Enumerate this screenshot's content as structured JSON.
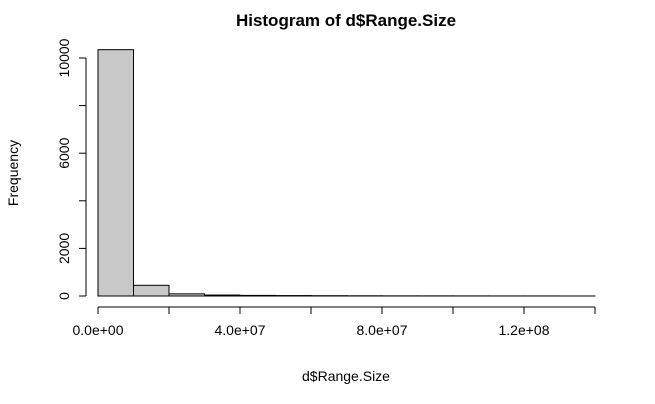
{
  "chart_data": {
    "type": "bar",
    "title": "Histogram of d$Range.Size",
    "xlabel": "d$Range.Size",
    "ylabel": "Frequency",
    "bin_width": 10000000,
    "bins": [
      {
        "start": 0,
        "end": 10000000,
        "count": 10350
      },
      {
        "start": 10000000,
        "end": 20000000,
        "count": 450
      },
      {
        "start": 20000000,
        "end": 30000000,
        "count": 90
      },
      {
        "start": 30000000,
        "end": 40000000,
        "count": 40
      },
      {
        "start": 40000000,
        "end": 50000000,
        "count": 25
      },
      {
        "start": 50000000,
        "end": 60000000,
        "count": 18
      },
      {
        "start": 60000000,
        "end": 70000000,
        "count": 12
      },
      {
        "start": 70000000,
        "end": 80000000,
        "count": 8
      },
      {
        "start": 80000000,
        "end": 90000000,
        "count": 6
      },
      {
        "start": 90000000,
        "end": 100000000,
        "count": 5
      },
      {
        "start": 100000000,
        "end": 110000000,
        "count": 4
      },
      {
        "start": 110000000,
        "end": 120000000,
        "count": 3
      },
      {
        "start": 120000000,
        "end": 130000000,
        "count": 2
      },
      {
        "start": 130000000,
        "end": 140000000,
        "count": 1
      }
    ],
    "xlim": [
      0,
      140000000
    ],
    "ylim": [
      0,
      10400
    ],
    "x_ticks": [
      {
        "value": 0,
        "label": "0.0e+00"
      },
      {
        "value": 20000000,
        "label": ""
      },
      {
        "value": 40000000,
        "label": "4.0e+07"
      },
      {
        "value": 60000000,
        "label": ""
      },
      {
        "value": 80000000,
        "label": "8.0e+07"
      },
      {
        "value": 100000000,
        "label": ""
      },
      {
        "value": 120000000,
        "label": "1.2e+08"
      },
      {
        "value": 140000000,
        "label": ""
      }
    ],
    "y_ticks": [
      {
        "value": 0,
        "label": "0"
      },
      {
        "value": 2000,
        "label": "2000"
      },
      {
        "value": 4000,
        "label": ""
      },
      {
        "value": 6000,
        "label": "6000"
      },
      {
        "value": 8000,
        "label": ""
      },
      {
        "value": 10000,
        "label": "10000"
      }
    ],
    "bar_color": "#c8c8c8",
    "grid": false
  }
}
